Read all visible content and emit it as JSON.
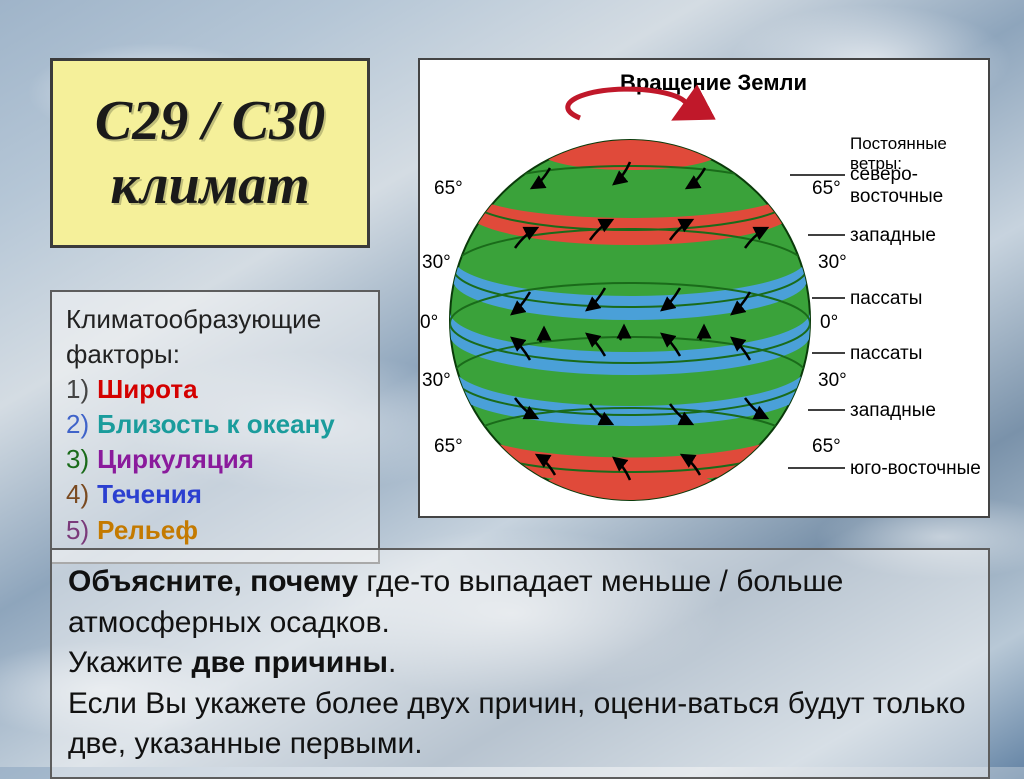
{
  "title": "С29 / С30\nклимат",
  "factors": {
    "heading": "Климатообразующие факторы:",
    "items": [
      {
        "num": "1)",
        "label": "Широта",
        "num_color": "#444444",
        "label_color": "#d40000"
      },
      {
        "num": "2)",
        "label": "Близость к океану",
        "num_color": "#3f63c9",
        "label_color": "#1a9c9c"
      },
      {
        "num": "3)",
        "label": "Циркуляция",
        "num_color": "#1a6b1a",
        "label_color": "#8a1a9c"
      },
      {
        "num": "4)",
        "label": "Течения",
        "num_color": "#7a4a20",
        "label_color": "#2b3fd0"
      },
      {
        "num": "5)",
        "label": "Рельеф",
        "num_color": "#7a3a7a",
        "label_color": "#c47a00"
      }
    ]
  },
  "question": {
    "line1_bold": "Объясните, почему",
    "line1_rest": " где-то выпадает меньше / больше атмосферных осадков.",
    "line2_pre": "Укажите ",
    "line2_bold": "две причины",
    "line2_post": ".",
    "line3": "Если Вы укажете более двух причин, оцени-ваться будут только две, указанные первыми."
  },
  "globe": {
    "rotation_label": "Вращение Земли",
    "winds_header": "Постоянные ветры:",
    "band_colors": {
      "polar": "#e04a3a",
      "temperate": "#4aa0d8",
      "tropic": "#e04a3a",
      "equator": "#4aa0d8",
      "base_green": "#3aa23a",
      "dark_green": "#1a6b1a",
      "arrow": "#000000",
      "rotation_arrow": "#c0182a"
    },
    "latitudes": [
      "65°",
      "30°",
      "0°",
      "30°",
      "65°"
    ],
    "wind_labels": [
      "северо-восточные",
      "западные",
      "пассаты",
      "пассаты",
      "западные",
      "юго-восточные"
    ]
  },
  "colors": {
    "title_bg": "#f5f09a",
    "title_border": "#3b3b3b",
    "panel_border": "#5d5d5d",
    "text": "#111111"
  }
}
